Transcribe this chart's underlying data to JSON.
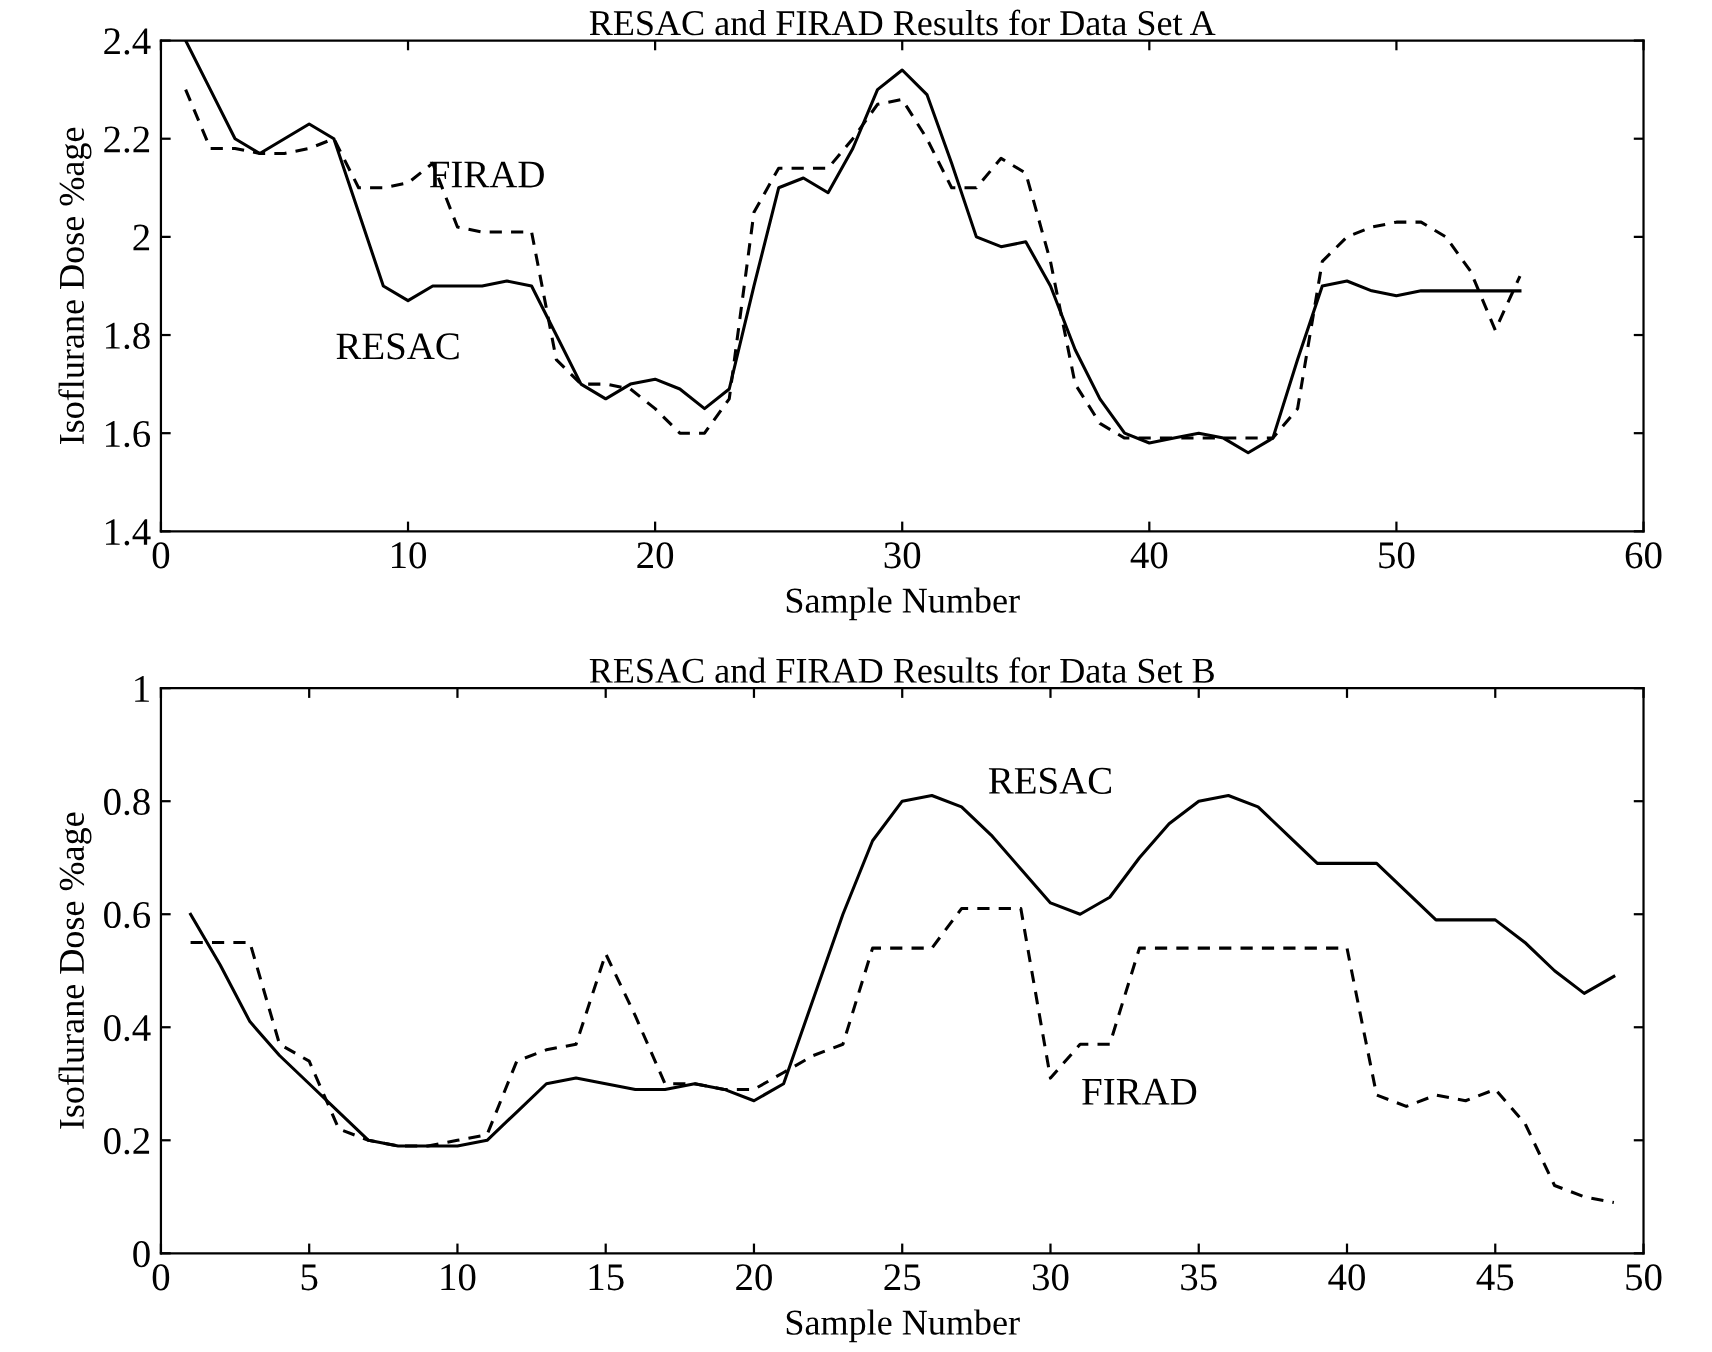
{
  "chart_data": [
    {
      "type": "line",
      "title": "RESAC and FIRAD Results for Data Set A",
      "xlabel": "Sample Number",
      "ylabel": "Isoflurane Dose %age",
      "x": [
        1,
        2,
        3,
        4,
        5,
        6,
        7,
        8,
        9,
        10,
        11,
        12,
        13,
        14,
        15,
        16,
        17,
        18,
        19,
        20,
        21,
        22,
        23,
        24,
        25,
        26,
        27,
        28,
        29,
        30,
        31,
        32,
        33,
        34,
        35,
        36,
        37,
        38,
        39,
        40,
        41,
        42,
        43,
        44,
        45,
        46,
        47,
        48,
        49,
        50,
        51,
        52,
        53,
        54,
        55
      ],
      "series": [
        {
          "name": "RESAC",
          "color": "#000000",
          "line_style": "solid",
          "values": [
            2.4,
            2.3,
            2.2,
            2.17,
            2.2,
            2.23,
            2.2,
            2.05,
            1.9,
            1.87,
            1.9,
            1.9,
            1.9,
            1.91,
            1.9,
            1.8,
            1.7,
            1.67,
            1.7,
            1.71,
            1.69,
            1.65,
            1.69,
            1.9,
            2.1,
            2.12,
            2.09,
            2.18,
            2.3,
            2.34,
            2.29,
            2.15,
            2.0,
            1.98,
            1.99,
            1.9,
            1.77,
            1.67,
            1.6,
            1.58,
            1.59,
            1.6,
            1.59,
            1.56,
            1.59,
            1.75,
            1.9,
            1.91,
            1.89,
            1.88,
            1.89,
            1.89,
            1.89,
            1.89,
            1.89
          ]
        },
        {
          "name": "FIRAD",
          "color": "#000000",
          "line_style": "dashed",
          "values": [
            2.3,
            2.18,
            2.18,
            2.17,
            2.17,
            2.18,
            2.2,
            2.1,
            2.1,
            2.11,
            2.15,
            2.02,
            2.01,
            2.01,
            2.01,
            1.75,
            1.7,
            1.7,
            1.69,
            1.65,
            1.6,
            1.6,
            1.67,
            2.05,
            2.14,
            2.14,
            2.14,
            2.2,
            2.27,
            2.28,
            2.2,
            2.1,
            2.1,
            2.16,
            2.13,
            1.95,
            1.7,
            1.62,
            1.59,
            1.59,
            1.59,
            1.59,
            1.59,
            1.59,
            1.59,
            1.65,
            1.95,
            2.0,
            2.02,
            2.03,
            2.03,
            2.0,
            1.93,
            1.81,
            1.92
          ]
        }
      ],
      "xlim": [
        0,
        60
      ],
      "xticks": [
        0,
        10,
        20,
        30,
        40,
        50,
        60
      ],
      "ylim": [
        1.4,
        2.4
      ],
      "yticks": [
        1.4,
        1.6,
        1.8,
        2,
        2.2,
        2.4
      ],
      "grid": false,
      "legend": false
    },
    {
      "type": "line",
      "title": "RESAC and FIRAD Results for Data Set B",
      "xlabel": "Sample Number",
      "ylabel": "Isoflurane Dose %age",
      "x": [
        1,
        2,
        3,
        4,
        5,
        6,
        7,
        8,
        9,
        10,
        11,
        12,
        13,
        14,
        15,
        16,
        17,
        18,
        19,
        20,
        21,
        22,
        23,
        24,
        25,
        26,
        27,
        28,
        29,
        30,
        31,
        32,
        33,
        34,
        35,
        36,
        37,
        38,
        39,
        40,
        41,
        42,
        43,
        44,
        45,
        46,
        47,
        48,
        49
      ],
      "series": [
        {
          "name": "RESAC",
          "color": "#000000",
          "line_style": "solid",
          "values": [
            0.6,
            0.51,
            0.41,
            0.35,
            0.3,
            0.25,
            0.2,
            0.19,
            0.19,
            0.19,
            0.2,
            0.25,
            0.3,
            0.31,
            0.3,
            0.29,
            0.29,
            0.3,
            0.29,
            0.27,
            0.3,
            0.45,
            0.6,
            0.73,
            0.8,
            0.81,
            0.79,
            0.74,
            0.68,
            0.62,
            0.6,
            0.63,
            0.7,
            0.76,
            0.8,
            0.81,
            0.79,
            0.74,
            0.69,
            0.69,
            0.69,
            0.64,
            0.59,
            0.59,
            0.59,
            0.55,
            0.5,
            0.46,
            0.49
          ]
        },
        {
          "name": "FIRAD",
          "color": "#000000",
          "line_style": "dashed",
          "values": [
            0.55,
            0.55,
            0.55,
            0.37,
            0.34,
            0.22,
            0.2,
            0.19,
            0.19,
            0.2,
            0.21,
            0.34,
            0.36,
            0.37,
            0.53,
            0.42,
            0.3,
            0.3,
            0.29,
            0.29,
            0.32,
            0.35,
            0.37,
            0.54,
            0.54,
            0.54,
            0.61,
            0.61,
            0.61,
            0.31,
            0.37,
            0.37,
            0.54,
            0.54,
            0.54,
            0.54,
            0.54,
            0.54,
            0.54,
            0.54,
            0.28,
            0.26,
            0.28,
            0.27,
            0.29,
            0.23,
            0.12,
            0.1,
            0.09
          ]
        }
      ],
      "xlim": [
        0,
        50
      ],
      "xticks": [
        0,
        5,
        10,
        15,
        20,
        25,
        30,
        35,
        40,
        45,
        50
      ],
      "ylim": [
        0,
        1
      ],
      "yticks": [
        0,
        0.2,
        0.4,
        0.6,
        0.8,
        1
      ],
      "grid": false,
      "legend": false
    }
  ]
}
